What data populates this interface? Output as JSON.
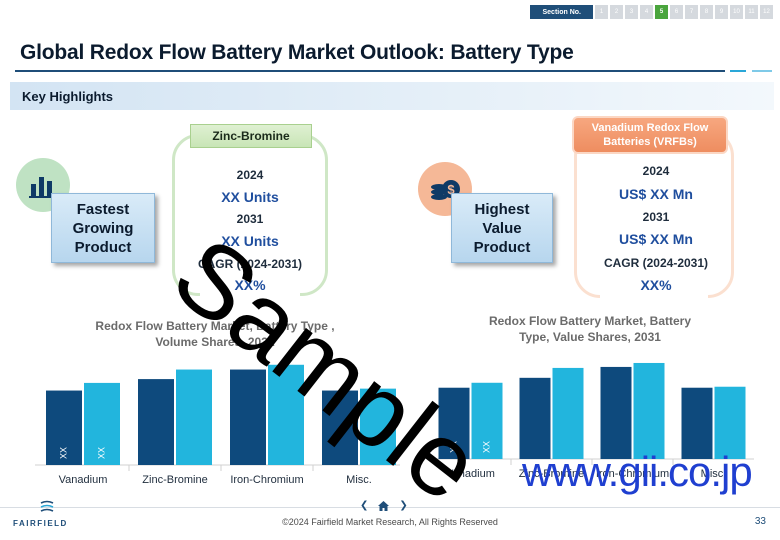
{
  "nav": {
    "section_label": "Section No.",
    "sections": [
      "1",
      "2",
      "3",
      "4",
      "5",
      "6",
      "7",
      "8",
      "9",
      "10",
      "11",
      "12"
    ],
    "active_index": 4
  },
  "page_title": "Global Redox Flow Battery  Market Outlook: Battery Type",
  "key_highlights_label": "Key Highlights",
  "left_highlight": {
    "icon": "bar-chart-icon",
    "label_lines": [
      "Fastest",
      "Growing",
      "Product"
    ],
    "tag": "Zinc-Bromine",
    "year_1": "2024",
    "value_1": "XX Units",
    "year_2": "2031",
    "value_2": "XX Units",
    "cagr_label": "CAGR (2024-2031)",
    "cagr_value": "XX%"
  },
  "right_highlight": {
    "icon": "coins-dollar-icon",
    "label_lines": [
      "Highest",
      "Value",
      "Product"
    ],
    "tag_lines": [
      "Vanadium Redox Flow",
      "Batteries (VRFBs)"
    ],
    "year_1": "2024",
    "value_1": "US$  XX Mn",
    "year_2": "2031",
    "value_2": "US$  XX Mn",
    "cagr_label": "CAGR (2024-2031)",
    "cagr_value": "XX%"
  },
  "chart_data": [
    {
      "type": "bar",
      "title_lines": [
        "Redox Flow Battery Market, Battery Type ,",
        "Volume Shares, 2031"
      ],
      "categories": [
        "Vanadium",
        "Zinc-Bromine",
        "Iron-Chromium",
        "Misc."
      ],
      "series": [
        {
          "values": [
            78,
            90,
            100,
            78
          ],
          "color": "#0e4a7d"
        },
        {
          "values": [
            86,
            100,
            105,
            80
          ],
          "color": "#22b5dd"
        }
      ],
      "data_labels": [
        "XX",
        "XX"
      ],
      "ylim": [
        0,
        110
      ],
      "grid": false
    },
    {
      "type": "bar",
      "title_lines": [
        "Redox Flow Battery    Market, Battery",
        "Type, Value Shares, 2031"
      ],
      "categories": [
        "Vanadium",
        "Zinc-Bromine",
        "Iron-Chromium",
        "Misc."
      ],
      "series": [
        {
          "values": [
            72,
            82,
            93,
            72
          ],
          "color": "#0e4a7d"
        },
        {
          "values": [
            77,
            92,
            97,
            73
          ],
          "color": "#22b5dd"
        }
      ],
      "data_labels": [
        "XX",
        "XX"
      ],
      "ylim": [
        0,
        100
      ],
      "grid": false
    }
  ],
  "footer": {
    "logo": "FAIRFIELD",
    "copyright": "©2024 Fairfield Market Research, All Rights Reserved",
    "page_number": "33",
    "prev_arrow": "❮",
    "next_arrow": "❯"
  },
  "watermarks": {
    "sample": "Sample",
    "url": "www.gii.co.jp"
  }
}
